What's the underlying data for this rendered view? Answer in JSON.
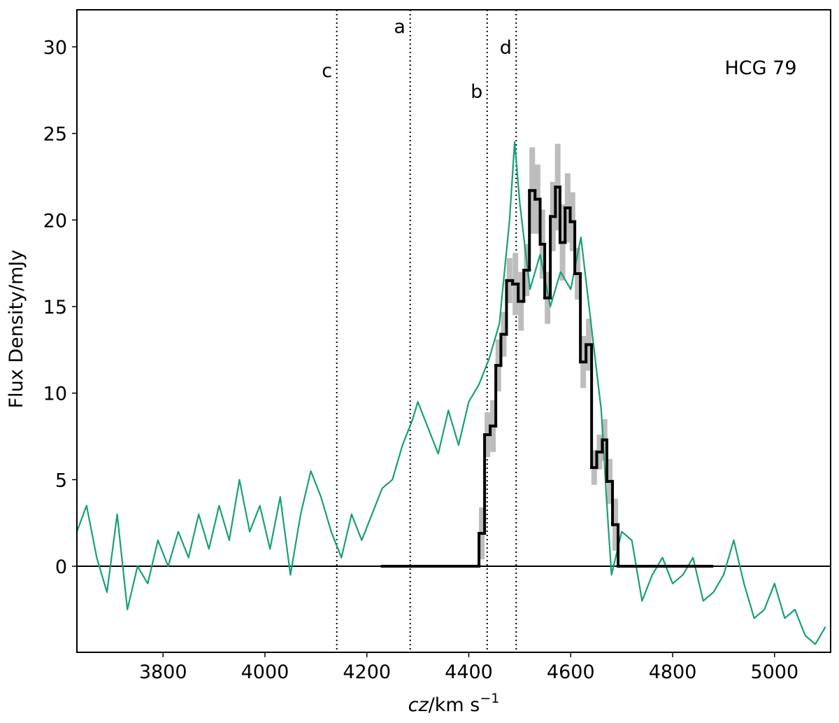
{
  "chart_data": {
    "type": "line",
    "annotation": "HCG 79",
    "ylabel": "Flux Density/mJy",
    "xlabel": {
      "italic": "cz",
      "text": "/km s",
      "sup": "−1"
    },
    "xlim": [
      3631,
      5110
    ],
    "ylim": [
      -4.97,
      32.14
    ],
    "xticks": [
      3800,
      4000,
      4200,
      4400,
      4600,
      4800,
      5000
    ],
    "yticks": [
      0,
      5,
      10,
      15,
      20,
      25,
      30
    ],
    "x": [
      3631,
      3650,
      3670,
      3690,
      3710,
      3730,
      3750,
      3770,
      3790,
      3810,
      3830,
      3850,
      3870,
      3890,
      3910,
      3930,
      3950,
      3970,
      3990,
      4010,
      4030,
      4050,
      4070,
      4090,
      4110,
      4130,
      4150,
      4170,
      4190,
      4210,
      4230,
      4250,
      4270,
      4290,
      4300,
      4320,
      4340,
      4360,
      4380,
      4400,
      4420,
      4440,
      4460,
      4480,
      4490,
      4500,
      4520,
      4540,
      4560,
      4580,
      4600,
      4620,
      4640,
      4660,
      4670,
      4680,
      4700,
      4720,
      4740,
      4760,
      4780,
      4800,
      4820,
      4840,
      4860,
      4880,
      4900,
      4920,
      4940,
      4960,
      4980,
      5000,
      5020,
      5040,
      5060,
      5080,
      5100
    ],
    "series": [
      {
        "color": "#17a07a",
        "values": [
          2,
          3.5,
          0.5,
          -1.5,
          3,
          -2.5,
          0,
          -1,
          1.5,
          0,
          2,
          0.5,
          3,
          1,
          3.5,
          1.5,
          5,
          2,
          3.5,
          1,
          4,
          -0.5,
          3,
          5.5,
          4,
          2,
          0.5,
          3,
          1.5,
          3,
          4.5,
          5,
          7,
          8.5,
          9.5,
          8,
          6.5,
          9,
          7,
          9.5,
          10.5,
          12,
          14,
          20,
          24.5,
          21,
          16,
          18,
          15,
          17,
          16,
          19,
          14,
          9,
          4,
          -0.5,
          2,
          1.5,
          -2,
          -0.5,
          0.5,
          -1,
          -0.5,
          0.5,
          -2,
          -1.5,
          -0.5,
          1.5,
          -1,
          -3,
          -2.5,
          -1,
          -3,
          -2.5,
          -4,
          -4.5,
          -3.5
        ]
      }
    ],
    "histogram": {
      "color": "#000000",
      "error_color": "#bdbdbd",
      "bins": [
        4230,
        4420,
        4431,
        4442,
        4453,
        4463,
        4474,
        4486,
        4497,
        4508,
        4519,
        4530,
        4540,
        4549,
        4560,
        4570,
        4579,
        4589,
        4599,
        4608,
        4619,
        4630,
        4641,
        4651,
        4662,
        4671,
        4682,
        4693,
        4877
      ],
      "values": [
        0,
        1.9,
        7.6,
        8.1,
        11.6,
        13.4,
        16.5,
        16.3,
        15.3,
        17.1,
        21.7,
        21.2,
        18.6,
        15.5,
        20.2,
        21.9,
        18.7,
        20.7,
        19.9,
        16.9,
        11.8,
        12.8,
        5.7,
        6.6,
        7.3,
        4.9,
        2.4,
        0
      ],
      "errors": [
        0,
        1.5,
        1.3,
        1.5,
        1.5,
        1.3,
        1.3,
        1.8,
        1.7,
        1.5,
        2.5,
        2,
        2,
        1.5,
        2,
        2.5,
        2.2,
        2,
        1.7,
        1.5,
        1.5,
        1.5,
        1,
        1,
        1.2,
        1.3,
        1.5,
        0
      ]
    },
    "vlines": [
      {
        "x": 4285,
        "label": "a"
      },
      {
        "x": 4436,
        "label": "b"
      },
      {
        "x": 4141,
        "label": "c"
      },
      {
        "x": 4493,
        "label": "d"
      }
    ]
  }
}
